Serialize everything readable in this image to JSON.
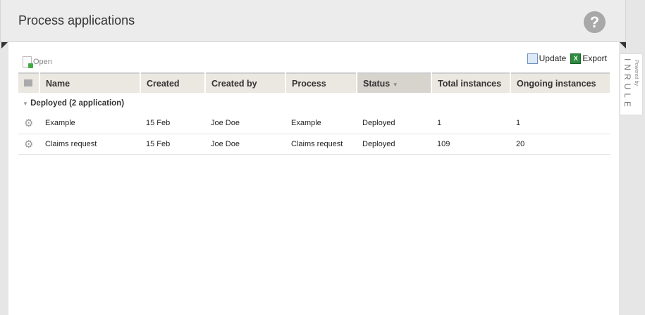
{
  "header": {
    "title": "Process applications",
    "help": "?"
  },
  "toolbar": {
    "open": "Open",
    "update": "Update",
    "export": "Export"
  },
  "table": {
    "columns": [
      "Name",
      "Created",
      "Created by",
      "Process",
      "Status",
      "Total instances",
      "Ongoing instances"
    ],
    "sorted_column": "Status",
    "group": "Deployed (2 application)",
    "rows": [
      [
        "Example",
        "15 Feb",
        "Joe Doe",
        "Example",
        "Deployed",
        "1",
        "1"
      ],
      [
        "Claims request",
        "15 Feb",
        "Joe Doe",
        "Claims request",
        "Deployed",
        "109",
        "20"
      ]
    ]
  },
  "branding": {
    "powered_by": "Powered by",
    "logo": "INRULE"
  }
}
